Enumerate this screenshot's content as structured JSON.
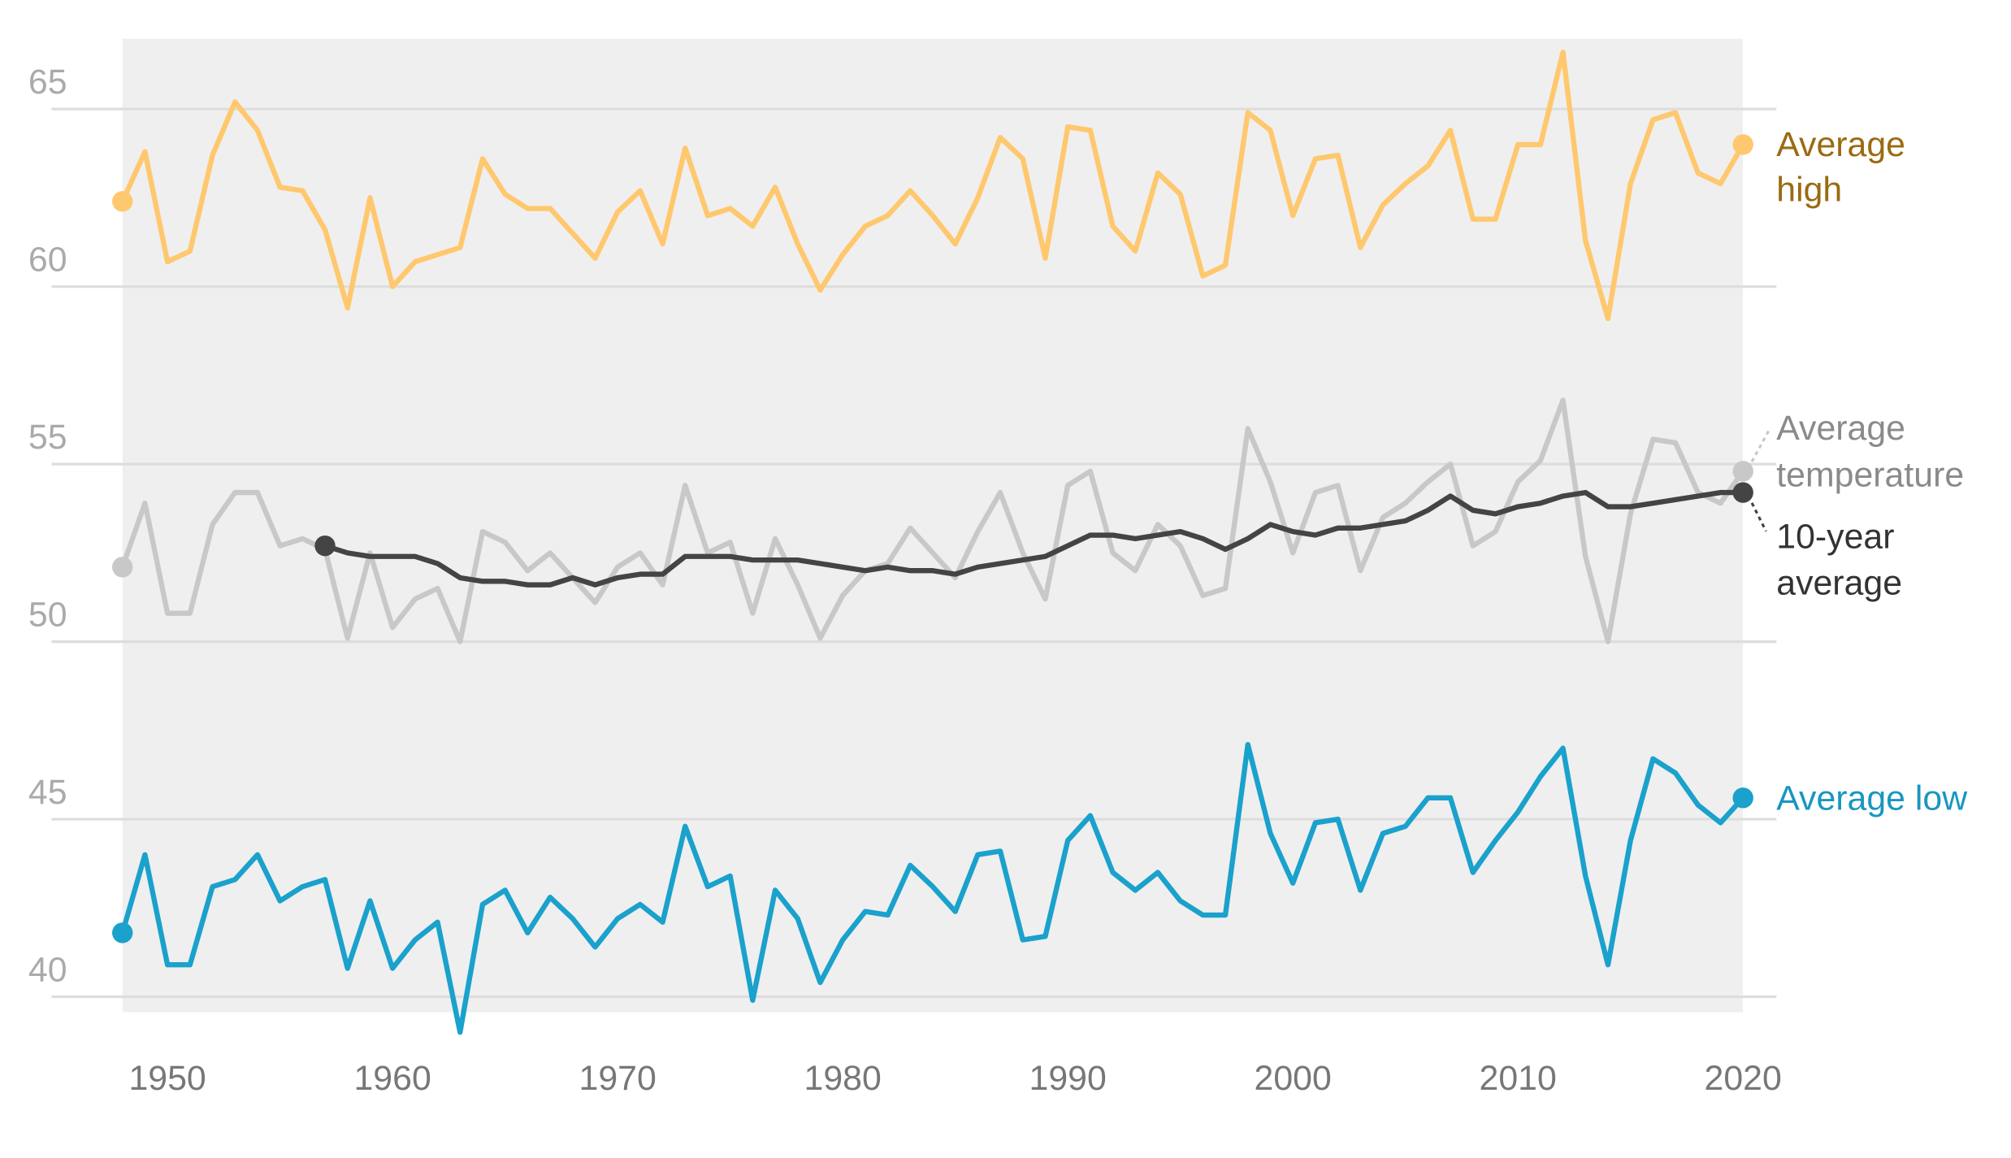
{
  "chart_data": {
    "type": "line",
    "title": "",
    "xlabel": "",
    "ylabel": "",
    "xlim": [
      1948,
      2020
    ],
    "ylim": [
      38.5,
      67
    ],
    "grid": true,
    "yticks": [
      40,
      45,
      50,
      55,
      60,
      65
    ],
    "xticks": [
      1950,
      1960,
      1970,
      1980,
      1990,
      2000,
      2010,
      2020
    ],
    "x_start": 1948,
    "legend_placement": "right, labels at line ends",
    "series": [
      {
        "name": "Average high",
        "label_lines": [
          "Average",
          "high"
        ],
        "color": "#ffc86e",
        "label_color": "#9b6a12",
        "start_year": 1948,
        "values": [
          62.4,
          63.8,
          60.7,
          61.0,
          63.7,
          65.2,
          64.4,
          62.8,
          62.7,
          61.6,
          59.4,
          62.5,
          60.0,
          60.7,
          60.9,
          61.1,
          63.6,
          62.6,
          62.2,
          62.2,
          61.5,
          60.8,
          62.1,
          62.7,
          61.2,
          63.9,
          62.0,
          62.2,
          61.7,
          62.8,
          61.2,
          59.9,
          60.9,
          61.7,
          62.0,
          62.7,
          62.0,
          61.2,
          62.5,
          64.2,
          63.6,
          60.8,
          64.5,
          64.4,
          61.7,
          61.0,
          63.2,
          62.6,
          60.3,
          60.6,
          64.9,
          64.4,
          62.0,
          63.6,
          63.7,
          61.1,
          62.3,
          62.9,
          63.4,
          64.4,
          61.9,
          61.9,
          64.0,
          64.0,
          66.6,
          61.3,
          59.1,
          62.9,
          64.7,
          64.9,
          63.2,
          62.9,
          64.0
        ]
      },
      {
        "name": "Average temperature",
        "label_lines": [
          "Average",
          "temperature"
        ],
        "color": "#c8c8c8",
        "label_color": "#8a8a8a",
        "start_year": 1948,
        "values": [
          52.1,
          53.9,
          50.8,
          50.8,
          53.3,
          54.2,
          54.2,
          52.7,
          52.9,
          52.6,
          50.1,
          52.5,
          50.4,
          51.2,
          51.5,
          50.0,
          53.1,
          52.8,
          52.0,
          52.5,
          51.8,
          51.1,
          52.1,
          52.5,
          51.6,
          54.4,
          52.5,
          52.8,
          50.8,
          52.9,
          51.6,
          50.1,
          51.3,
          52.0,
          52.2,
          53.2,
          52.5,
          51.8,
          53.1,
          54.2,
          52.5,
          51.2,
          54.4,
          54.8,
          52.5,
          52.0,
          53.3,
          52.7,
          51.3,
          51.5,
          56.0,
          54.5,
          52.5,
          54.2,
          54.4,
          52.0,
          53.5,
          53.9,
          54.5,
          55.0,
          52.7,
          53.1,
          54.5,
          55.1,
          56.8,
          52.4,
          50.0,
          53.6,
          55.7,
          55.6,
          54.2,
          53.9,
          54.8
        ]
      },
      {
        "name": "10-year average",
        "label_lines": [
          "10-year",
          "average"
        ],
        "color": "#444444",
        "label_color": "#333333",
        "start_year": 1957,
        "values": [
          52.7,
          52.5,
          52.4,
          52.4,
          52.4,
          52.2,
          51.8,
          51.7,
          51.7,
          51.6,
          51.6,
          51.8,
          51.6,
          51.8,
          51.9,
          51.9,
          52.4,
          52.4,
          52.4,
          52.3,
          52.3,
          52.3,
          52.2,
          52.1,
          52.0,
          52.1,
          52.0,
          52.0,
          51.9,
          52.1,
          52.2,
          52.3,
          52.4,
          52.7,
          53.0,
          53.0,
          52.9,
          53.0,
          53.1,
          52.9,
          52.6,
          52.9,
          53.3,
          53.1,
          53.0,
          53.2,
          53.2,
          53.3,
          53.4,
          53.7,
          54.1,
          53.7,
          53.6,
          53.8,
          53.9,
          54.1,
          54.2,
          53.8,
          53.8,
          53.9,
          54.0,
          54.1,
          54.2,
          54.2
        ]
      },
      {
        "name": "Average low",
        "label_lines": [
          "Average low"
        ],
        "color": "#1aa1cc",
        "label_color": "#1a96c0",
        "start_year": 1948,
        "values": [
          41.8,
          44.0,
          40.9,
          40.9,
          43.1,
          43.3,
          44.0,
          42.7,
          43.1,
          43.3,
          40.8,
          42.7,
          40.8,
          41.6,
          42.1,
          39.0,
          42.6,
          43.0,
          41.8,
          42.8,
          42.2,
          41.4,
          42.2,
          42.6,
          42.1,
          44.8,
          43.1,
          43.4,
          39.9,
          43.0,
          42.2,
          40.4,
          41.6,
          42.4,
          42.3,
          43.7,
          43.1,
          42.4,
          44.0,
          44.1,
          41.6,
          41.7,
          44.4,
          45.1,
          43.5,
          43.0,
          43.5,
          42.7,
          42.3,
          42.3,
          47.1,
          44.6,
          43.2,
          44.9,
          45.0,
          43.0,
          44.6,
          44.8,
          45.6,
          45.6,
          43.5,
          44.4,
          45.2,
          46.2,
          47.0,
          43.4,
          40.9,
          44.4,
          46.7,
          46.3,
          45.4,
          44.9,
          45.6
        ]
      }
    ],
    "shaded_band_color": "#efefef"
  }
}
